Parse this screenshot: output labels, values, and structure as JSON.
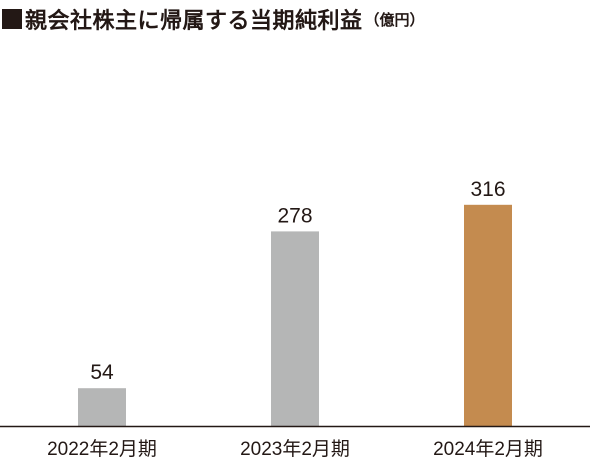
{
  "title": {
    "main": "親会社株主に帰属する当期純利益",
    "unit": "（億円）"
  },
  "chart_data": {
    "type": "bar",
    "title": "親会社株主に帰属する当期純利益（億円）",
    "categories": [
      "2022年2月期",
      "2023年2月期",
      "2024年2月期"
    ],
    "values": [
      54,
      278,
      316
    ],
    "data_labels": [
      "54",
      "278",
      "316"
    ],
    "ylim": [
      0,
      340
    ],
    "grid": false,
    "colors": {
      "default": "#b5b6b6",
      "highlight": "#c48b4f",
      "axis": "#231815"
    },
    "highlight_index": 2
  }
}
